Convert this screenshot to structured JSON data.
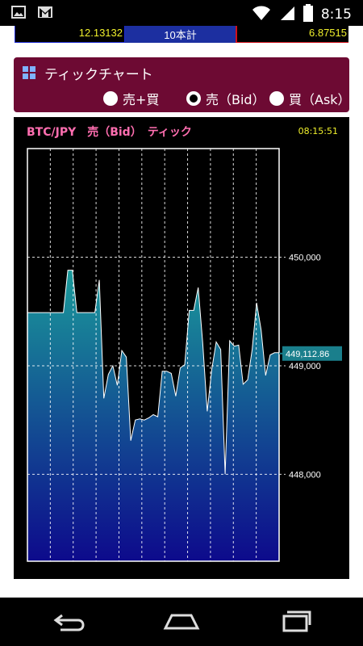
{
  "status_bar": {
    "time": "8:15",
    "icons": [
      "image-icon",
      "gmail-icon",
      "wifi-icon",
      "signal-icon",
      "battery-icon"
    ]
  },
  "counters": {
    "left_value": "12.13132",
    "middle_label": "10本計",
    "right_value": "6.87515"
  },
  "tick_panel": {
    "title": "ティックチャート",
    "options": [
      {
        "label": "売+買",
        "selected": false
      },
      {
        "label": "売（Bid）",
        "selected": true
      },
      {
        "label": "買（Ask）",
        "selected": false
      }
    ]
  },
  "chart_header": {
    "title": "BTC/JPY　売（Bid）　ティック",
    "time": "08:15:51"
  },
  "chart_data": {
    "type": "area",
    "title": "BTC/JPY　売（Bid）　ティック",
    "y_tick_labels": [
      "450,000",
      "449,000",
      "448,000"
    ],
    "y_ticks": [
      450000,
      449000,
      448000
    ],
    "ylim": [
      447200,
      451000
    ],
    "current_value": 449112.86,
    "current_value_label": "449,112.86",
    "grid": true,
    "colors": {
      "top": "#1a9a9a",
      "bottom": "#0d0a8c",
      "line": "#ffffff",
      "highlight": "#1a7f8c"
    },
    "y": [
      449490,
      449490,
      449490,
      449490,
      449490,
      449490,
      449490,
      449490,
      449490,
      449880,
      449880,
      449490,
      449490,
      449490,
      449490,
      449490,
      449790,
      448700,
      448920,
      449000,
      448820,
      449140,
      449080,
      448310,
      448500,
      448510,
      448500,
      448520,
      448550,
      448530,
      448950,
      448950,
      448930,
      448720,
      448980,
      449010,
      449510,
      449510,
      449720,
      449210,
      448580,
      448960,
      449220,
      449150,
      448000,
      449230,
      449180,
      449190,
      448830,
      448870,
      449150,
      449580,
      449330,
      448910,
      449100,
      449120,
      449120
    ]
  },
  "nav_bar": {
    "buttons": [
      "back-button",
      "home-button",
      "recents-button"
    ]
  }
}
